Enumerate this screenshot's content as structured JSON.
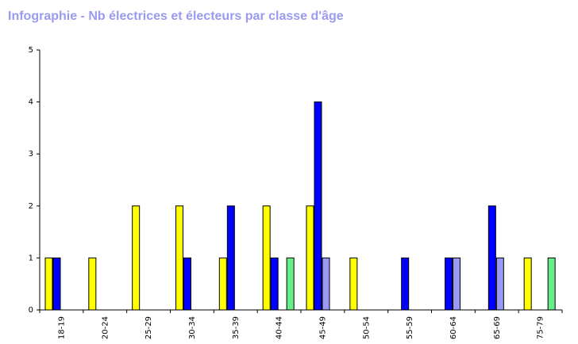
{
  "chart_data": {
    "type": "bar",
    "title": "Infographie - Nb électrices et électeurs par classe d'âge",
    "categories": [
      "18-19",
      "20-24",
      "25-29",
      "30-34",
      "35-39",
      "40-44",
      "45-49",
      "50-54",
      "55-59",
      "60-64",
      "65-69",
      "75-79"
    ],
    "series": [
      {
        "color": "#ffff00",
        "values": [
          1,
          1,
          2,
          2,
          1,
          2,
          2,
          1,
          0,
          0,
          0,
          1
        ]
      },
      {
        "color": "#0000ff",
        "values": [
          1,
          0,
          0,
          1,
          2,
          1,
          4,
          0,
          1,
          1,
          2,
          0
        ]
      },
      {
        "color": "#9999f5",
        "values": [
          0,
          0,
          0,
          0,
          0,
          0,
          1,
          0,
          0,
          1,
          1,
          0
        ]
      },
      {
        "color": "#66ee88",
        "values": [
          0,
          0,
          0,
          0,
          0,
          1,
          0,
          0,
          0,
          0,
          0,
          1
        ]
      }
    ],
    "yticks": [
      "0",
      "1",
      "2",
      "3",
      "4",
      "5"
    ],
    "ylim": [
      0,
      5
    ],
    "grid": false
  }
}
